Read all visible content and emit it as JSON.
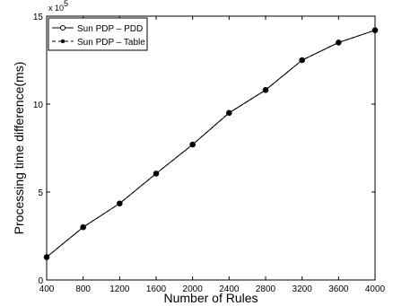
{
  "chart_data": {
    "type": "line",
    "title": "",
    "xlabel": "Number of Rules",
    "ylabel": "Processing time difference(ms)",
    "y_multiplier_label": "x 10",
    "y_multiplier_exponent": "5",
    "x": [
      400,
      800,
      1200,
      1600,
      2000,
      2400,
      2800,
      3200,
      3600,
      4000
    ],
    "x_tick_labels": [
      "400",
      "800",
      "1200",
      "1600",
      "2000",
      "2400",
      "2800",
      "3200",
      "3600",
      "4000"
    ],
    "xlim": [
      400,
      4000
    ],
    "y_ticks": [
      0,
      5,
      10,
      15
    ],
    "y_tick_labels": [
      "0",
      "5",
      "10",
      "15"
    ],
    "ylim": [
      0,
      15
    ],
    "series": [
      {
        "name": "Sun PDP – PDD",
        "marker": "open-circle",
        "line": "solid",
        "values": [
          1.3,
          3.0,
          4.35,
          6.05,
          7.7,
          9.5,
          10.8,
          12.5,
          13.5,
          14.2
        ]
      },
      {
        "name": "Sun PDP – Table",
        "marker": "filled-dot",
        "line": "dashed",
        "values": [
          1.3,
          3.0,
          4.35,
          6.05,
          7.7,
          9.5,
          10.8,
          12.5,
          13.5,
          14.2
        ]
      }
    ],
    "legend_position": "top-left",
    "grid": false,
    "colors": {
      "line": "#000000",
      "background": "#ffffff"
    }
  }
}
